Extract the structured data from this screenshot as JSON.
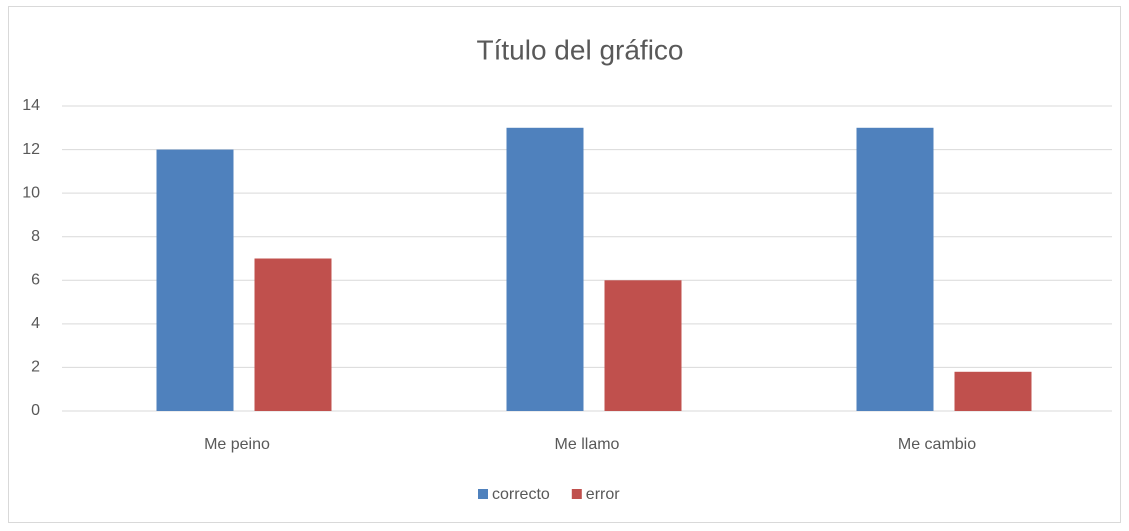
{
  "chart_data": {
    "type": "bar",
    "title": "Título del gráfico",
    "categories": [
      "Me peino",
      "Me llamo",
      "Me cambio"
    ],
    "series": [
      {
        "name": "correcto",
        "color": "#4f81bd",
        "values": [
          12,
          13,
          13
        ]
      },
      {
        "name": "error",
        "color": "#c0504d",
        "values": [
          7,
          6,
          1.8
        ]
      }
    ],
    "ylim": [
      0,
      14
    ],
    "yticks": [
      0,
      2,
      4,
      6,
      8,
      10,
      12,
      14
    ],
    "grid": true,
    "legend": "bottom"
  }
}
